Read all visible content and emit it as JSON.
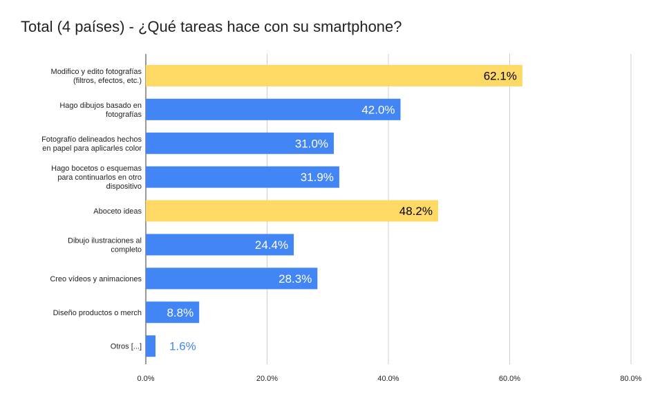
{
  "chart_data": {
    "type": "bar",
    "orientation": "horizontal",
    "title": "Total (4 países) - ¿Qué tareas hace con su smartphone?",
    "xlabel": "",
    "ylabel": "",
    "xlim": [
      0,
      80
    ],
    "ticks": [
      0,
      20,
      40,
      60,
      80
    ],
    "tick_labels": [
      "0.0%",
      "20.0%",
      "40.0%",
      "60.0%",
      "80.0%"
    ],
    "grid": true,
    "legend": "none",
    "categories": [
      [
        "Modifico y edito fotografías",
        "(filtros, efectos, etc.)"
      ],
      [
        "Hago dibujos basado en",
        "fotografías"
      ],
      [
        "Fotografío delineados hechos",
        "en papel para aplicarles color"
      ],
      [
        "Hago bocetos o esquemas",
        "para continuarlos en otro",
        "dispositivo"
      ],
      [
        "Aboceto ideas"
      ],
      [
        "Dibujo ilustraciones al",
        "completo"
      ],
      [
        "Creo vídeos y animaciones"
      ],
      [
        "Diseño productos o merch"
      ],
      [
        "Otros [...]"
      ]
    ],
    "values": [
      62.1,
      42.0,
      31.0,
      31.9,
      48.2,
      24.4,
      28.3,
      8.8,
      1.6
    ],
    "data_labels": [
      "62.1%",
      "42.0%",
      "31.0%",
      "31.9%",
      "48.2%",
      "24.4%",
      "28.3%",
      "8.8%",
      "1.6%"
    ],
    "colors": [
      "#ffd966",
      "#4285f4",
      "#4285f4",
      "#4285f4",
      "#ffd966",
      "#4285f4",
      "#4285f4",
      "#4285f4",
      "#4285f4"
    ],
    "grid_color": "#cccccc"
  }
}
